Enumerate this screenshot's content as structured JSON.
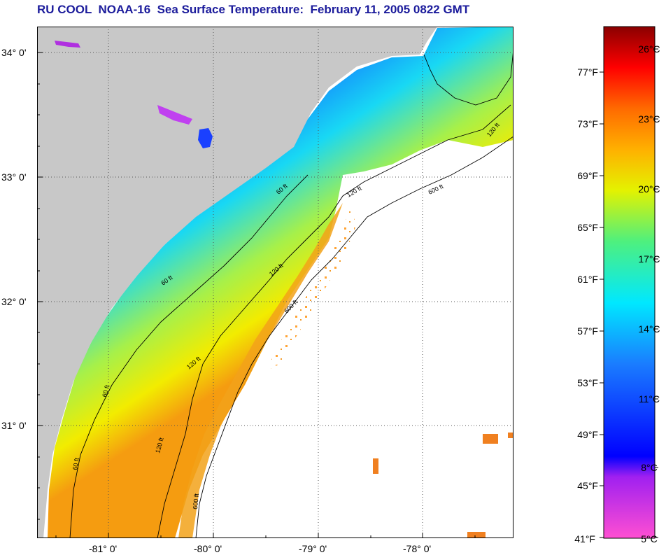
{
  "title": "RU COOL  NOAA-16  Sea Surface Temperature:  February 11, 2005 0822 GMT",
  "map": {
    "lat_labels": [
      "34° 0'",
      "33° 0'",
      "32° 0'",
      "31° 0'"
    ],
    "lon_labels": [
      "-81° 0'",
      "-80° 0'",
      "-79° 0'",
      "-78° 0'"
    ],
    "contour_labels": {
      "c60": [
        "60 ft",
        "60 ft",
        "60 ft",
        "60 ft"
      ],
      "c120": [
        "120 ft",
        "120 ft",
        "120 ft",
        "120 ft",
        "120 ft"
      ],
      "c600": [
        "600 ft",
        "600 ft",
        "600 ft"
      ]
    },
    "land_color": "#c8c8c8",
    "cloud_color": "#ffffff"
  },
  "colorbar": {
    "fahrenheit_labels": [
      "77°F",
      "73°F",
      "69°F",
      "65°F",
      "61°F",
      "57°F",
      "53°F",
      "49°F",
      "45°F",
      "41°F"
    ],
    "celsius_labels": [
      "26°C",
      "23°C",
      "20°C",
      "17°C",
      "14°C",
      "11°C",
      "8°C",
      "5°C"
    ]
  }
}
